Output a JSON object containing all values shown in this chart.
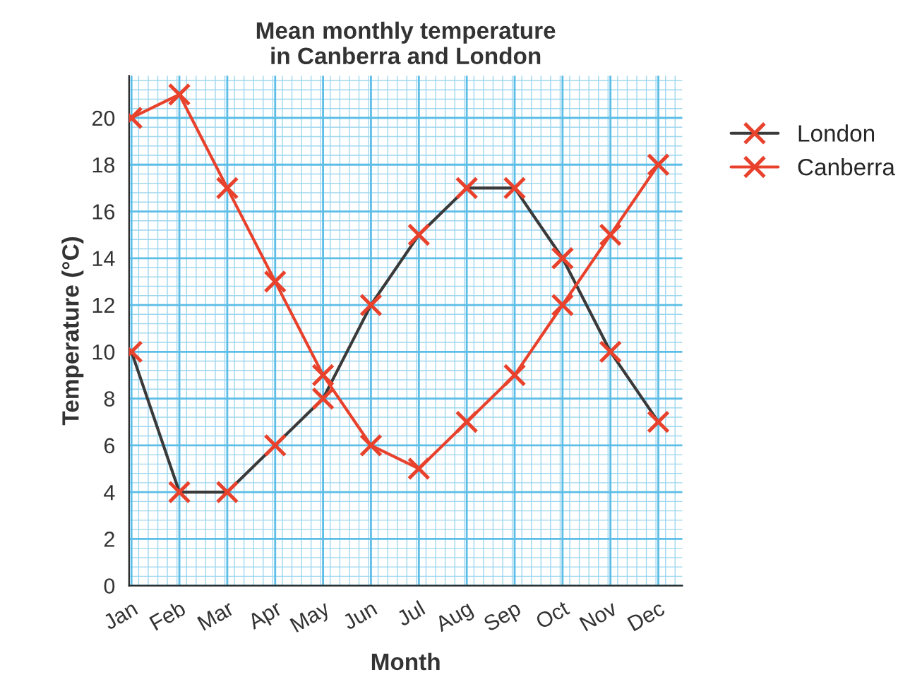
{
  "chart_data": {
    "type": "line",
    "title": "Mean monthly temperature\nin Canberra and London",
    "xlabel": "Month",
    "ylabel": "Temperature (°C)",
    "categories": [
      "Jan",
      "Feb",
      "Mar",
      "Apr",
      "May",
      "Jun",
      "Jul",
      "Aug",
      "Sep",
      "Oct",
      "Nov",
      "Dec"
    ],
    "series": [
      {
        "name": "London",
        "color": "#3a3a3a",
        "values": [
          10,
          4,
          4,
          6,
          8,
          12,
          15,
          17,
          17,
          14,
          10,
          7
        ]
      },
      {
        "name": "Canberra",
        "color": "#e8412c",
        "values": [
          20,
          21,
          17,
          13,
          9,
          6,
          5,
          7,
          9,
          12,
          15,
          18
        ]
      }
    ],
    "ylim": [
      0,
      21.8
    ],
    "yticks": [
      0,
      2,
      4,
      6,
      8,
      10,
      12,
      14,
      16,
      18,
      20
    ],
    "grid": true,
    "legend": "right",
    "marker": "cross",
    "line_style": "solid"
  }
}
